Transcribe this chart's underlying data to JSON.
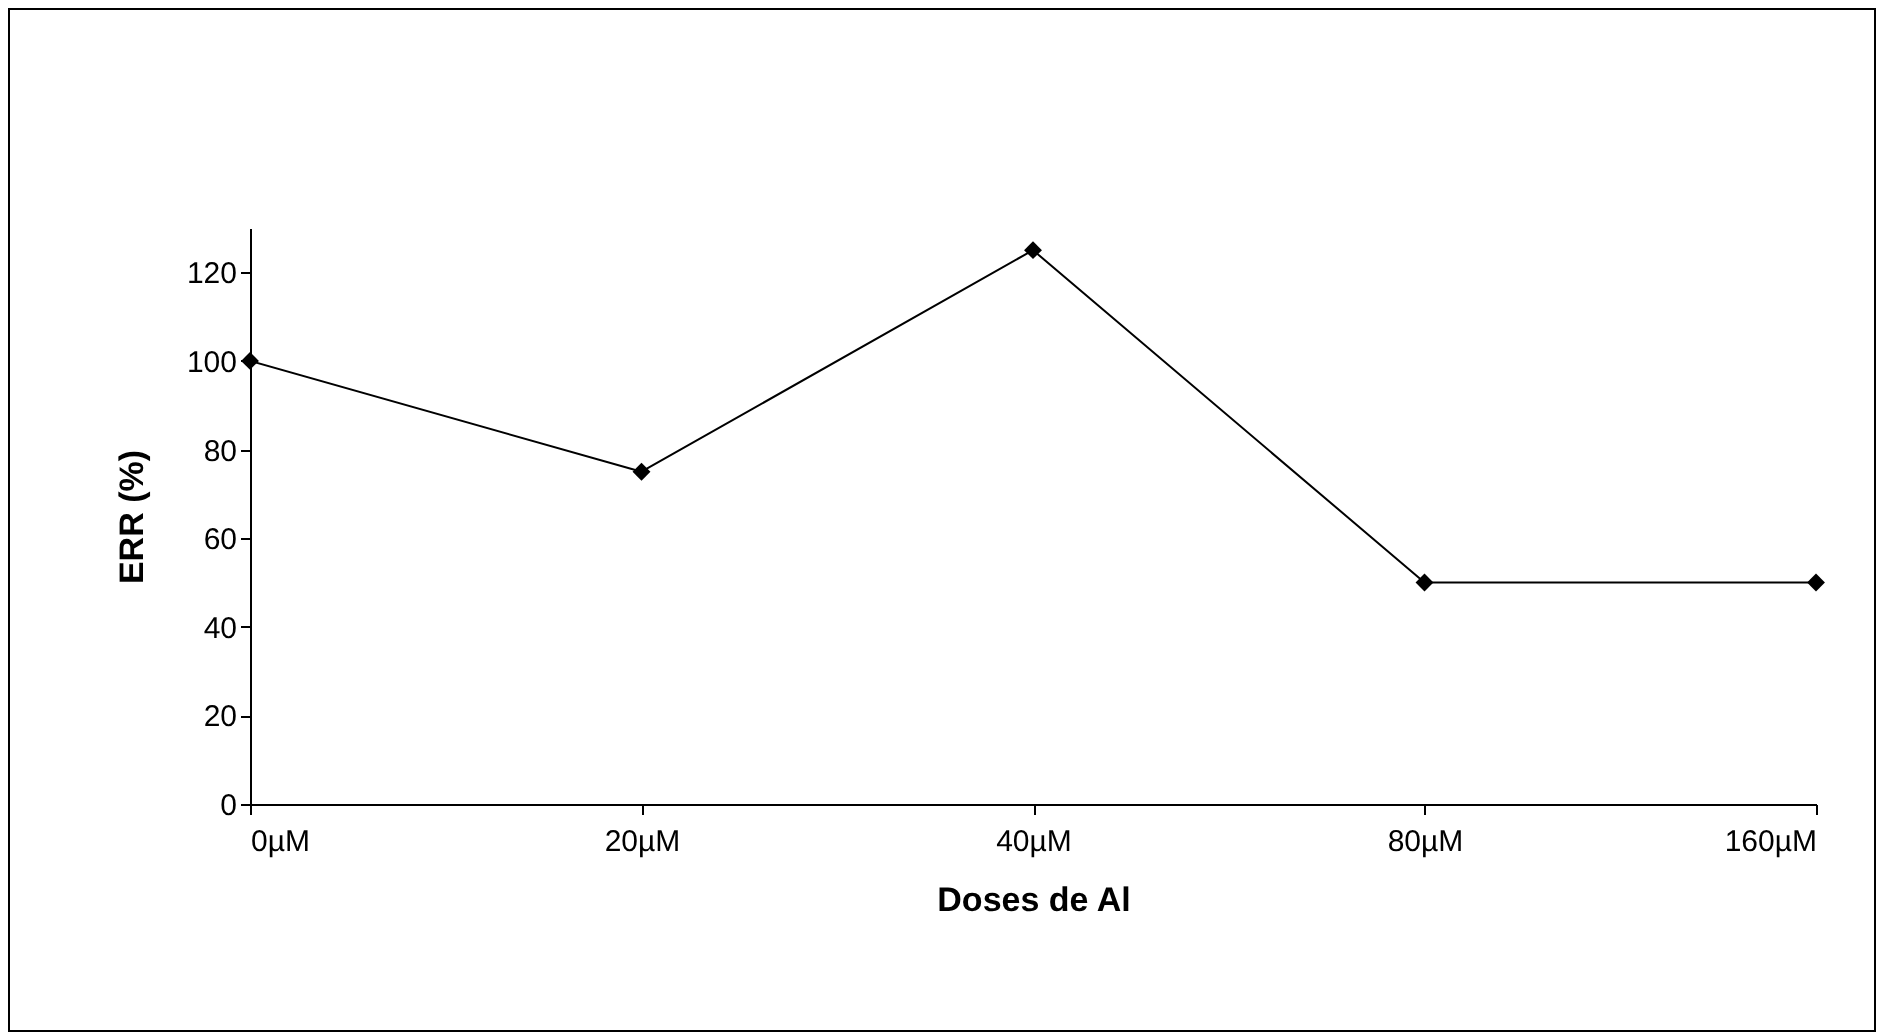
{
  "chart_data": {
    "type": "line",
    "xlabel": "Doses de Al",
    "ylabel": "ERR (%)",
    "categories": [
      "0µM",
      "20µM",
      "40µM",
      "80µM",
      "160µM"
    ],
    "series": [
      {
        "color": "#000000",
        "values": [
          100,
          75,
          125,
          50,
          50
        ]
      }
    ],
    "ylim": [
      0,
      130
    ],
    "yticks": [
      0,
      20,
      40,
      60,
      80,
      100,
      120
    ],
    "grid": false,
    "legend": false,
    "marker": "diamond",
    "line_style": "solid"
  }
}
